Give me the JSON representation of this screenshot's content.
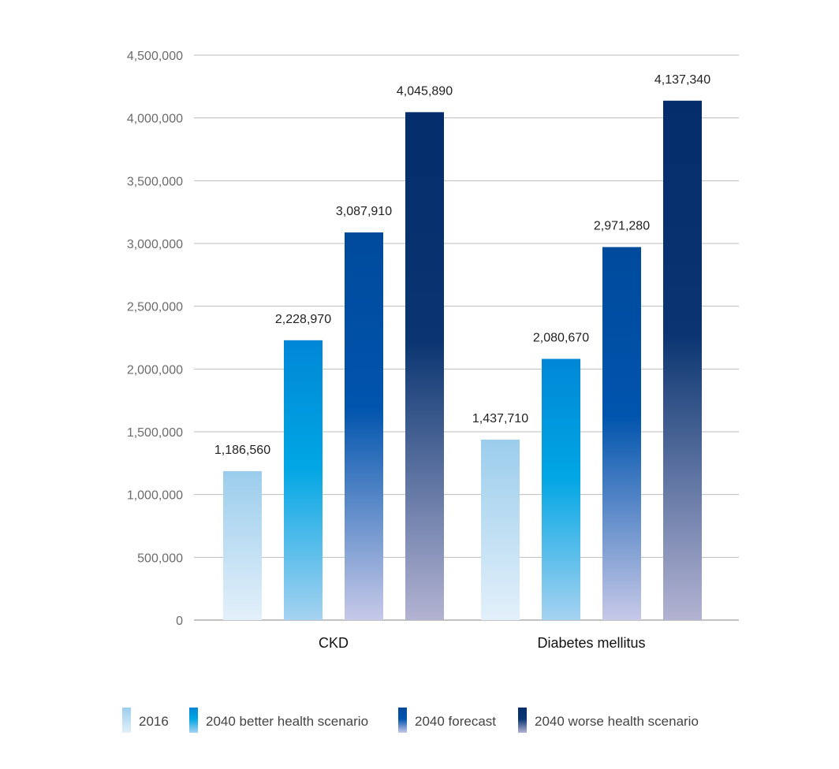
{
  "chart_data": {
    "type": "bar",
    "title": "",
    "xlabel": "",
    "ylabel": "",
    "categories": [
      "CKD",
      "Diabetes mellitus"
    ],
    "series": [
      {
        "name": "2016",
        "values": [
          1186560,
          1437710
        ],
        "color_top": "#9bcdec",
        "color_bottom": "#e3f0fa"
      },
      {
        "name": "2040 better health scenario",
        "values": [
          2228970,
          2080670
        ],
        "color_top": "#0087d6",
        "color_mid": "#00a6e4",
        "color_bottom": "#a6d2f0"
      },
      {
        "name": "2040 forecast",
        "values": [
          3087910,
          2971280
        ],
        "color_top": "#004a9c",
        "color_mid": "#0054ad",
        "color_bottom": "#c7c9e8"
      },
      {
        "name": "2040 worse health scenario",
        "values": [
          4045890,
          4137340
        ],
        "color_top": "#032d6b",
        "color_mid": "#0a3571",
        "color_bottom": "#b3b3d2"
      }
    ],
    "data_labels": [
      [
        "1,186,560",
        "1,437,710"
      ],
      [
        "2,228,970",
        "2,080,670"
      ],
      [
        "3,087,910",
        "2,971,280"
      ],
      [
        "4,045,890",
        "4,137,340"
      ]
    ],
    "ylim": [
      0,
      4500000
    ],
    "yticks": [
      0,
      500000,
      1000000,
      1500000,
      2000000,
      2500000,
      3000000,
      3500000,
      4000000,
      4500000
    ],
    "ytick_labels": [
      "0",
      "500,000",
      "1,000,000",
      "1,500,000",
      "2,000,000",
      "2,500,000",
      "3,000,000",
      "3,500,000",
      "4,000,000",
      "4,500,000"
    ],
    "grid": true,
    "legend_position": "bottom"
  }
}
